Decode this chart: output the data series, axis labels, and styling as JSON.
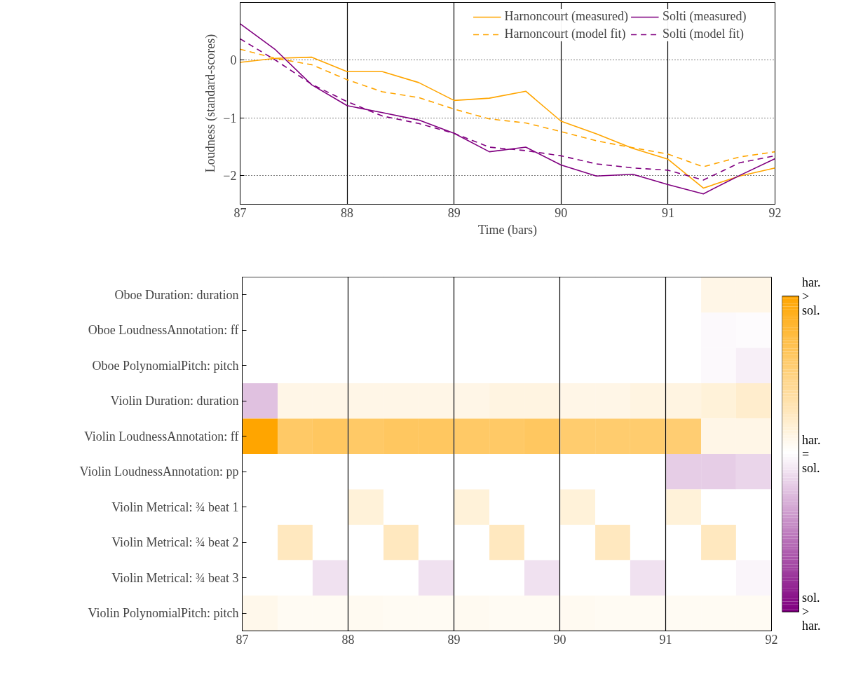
{
  "chart_data": [
    {
      "type": "line",
      "xlabel": "Time (bars)",
      "ylabel": "Loudness (standard-scores)",
      "x": [
        87,
        87.33,
        87.67,
        88,
        88.33,
        88.67,
        89,
        89.33,
        89.67,
        90,
        90.33,
        90.67,
        91,
        91.33,
        91.67,
        92
      ],
      "series": [
        {
          "name": "Harnoncourt (measured)",
          "color": "#ffa500",
          "line_style": "solid",
          "values": [
            -0.04,
            0.03,
            0.05,
            -0.2,
            -0.2,
            -0.39,
            -0.7,
            -0.66,
            -0.54,
            -1.06,
            -1.28,
            -1.53,
            -1.72,
            -2.22,
            -2.01,
            -1.87
          ]
        },
        {
          "name": "Harnoncourt (model fit)",
          "color": "#ffa500",
          "line_style": "dashed",
          "values": [
            0.19,
            0.03,
            -0.08,
            -0.34,
            -0.55,
            -0.65,
            -0.85,
            -1.02,
            -1.09,
            -1.24,
            -1.4,
            -1.52,
            -1.63,
            -1.85,
            -1.68,
            -1.59
          ]
        },
        {
          "name": "Solti (measured)",
          "color": "#800080",
          "line_style": "solid",
          "values": [
            0.63,
            0.18,
            -0.43,
            -0.79,
            -0.91,
            -1.04,
            -1.27,
            -1.59,
            -1.51,
            -1.82,
            -2.01,
            -1.98,
            -2.16,
            -2.32,
            -2.0,
            -1.71
          ]
        },
        {
          "name": "Solti (model fit)",
          "color": "#800080",
          "line_style": "dashed",
          "values": [
            0.37,
            0.0,
            -0.42,
            -0.72,
            -0.97,
            -1.1,
            -1.27,
            -1.51,
            -1.57,
            -1.66,
            -1.8,
            -1.87,
            -1.91,
            -2.08,
            -1.78,
            -1.66
          ]
        }
      ],
      "xlim": [
        87,
        92
      ],
      "xticks": [
        87,
        88,
        89,
        90,
        91,
        92
      ],
      "ylim": [
        -2.5,
        1.0
      ],
      "yticks": [
        -2,
        -1,
        0
      ],
      "grid": true,
      "legend": "top right",
      "marker": "none"
    },
    {
      "type": "heatmap",
      "x": [
        87.17,
        87.5,
        87.83,
        88.17,
        88.5,
        88.83,
        89.17,
        89.5,
        89.83,
        90.17,
        90.5,
        90.83,
        91.17,
        91.5,
        91.83
      ],
      "xlim": [
        87,
        92
      ],
      "xticks": [
        87,
        88,
        89,
        90,
        91,
        92
      ],
      "grid": "x",
      "y_categories": [
        "Oboe Duration: duration",
        "Oboe LoudnessAnnotation: ff",
        "Oboe PolynomialPitch: pitch",
        "Violin Duration: duration",
        "Violin LoudnessAnnotation: ff",
        "Violin LoudnessAnnotation: pp",
        "Violin Metrical: ¾ beat 1",
        "Violin Metrical: ¾ beat 2",
        "Violin Metrical: ¾ beat 3",
        "Violin PolynomialPitch: pitch"
      ],
      "cells": [
        [
          0,
          0,
          0,
          0,
          0,
          0,
          0,
          0,
          0,
          0,
          0,
          0,
          0,
          0.1,
          0.1
        ],
        [
          0,
          0,
          0,
          0,
          0,
          0,
          0,
          0,
          0,
          0,
          0,
          0,
          0,
          -0.03,
          -0.02
        ],
        [
          0,
          0,
          0,
          0,
          0,
          0,
          0,
          0,
          0,
          0,
          0,
          0,
          0,
          -0.03,
          -0.07
        ],
        [
          -0.25,
          0.1,
          0.1,
          0.1,
          0.1,
          0.1,
          0.1,
          0.12,
          0.12,
          0.1,
          0.1,
          0.12,
          0.12,
          0.15,
          0.2
        ],
        [
          1.0,
          0.6,
          0.62,
          0.6,
          0.62,
          0.62,
          0.6,
          0.6,
          0.62,
          0.57,
          0.57,
          0.57,
          0.55,
          0.1,
          0.1
        ],
        [
          0,
          0,
          0,
          0,
          0,
          0,
          0,
          0,
          0,
          0,
          0,
          0,
          -0.2,
          -0.2,
          -0.17
        ],
        [
          0,
          0,
          0,
          0.15,
          0,
          0,
          0.15,
          0,
          0,
          0.15,
          0,
          0,
          0.15,
          0,
          0
        ],
        [
          0,
          0.25,
          0,
          0,
          0.25,
          0,
          0,
          0.25,
          0,
          0,
          0.25,
          0,
          0,
          0.25,
          0
        ],
        [
          0,
          0,
          -0.12,
          0,
          0,
          -0.12,
          0,
          0,
          -0.12,
          0,
          0,
          -0.12,
          0,
          0,
          -0.04
        ],
        [
          0.08,
          0.05,
          0.05,
          0.06,
          0.05,
          0.05,
          0.06,
          0.05,
          0.05,
          0.06,
          0.05,
          0.05,
          0.05,
          0.05,
          0.05
        ]
      ],
      "clim": [
        -1,
        1
      ],
      "cticks": [
        {
          "value": 1,
          "label": "har. > sol."
        },
        {
          "value": 0,
          "label": "har. = sol."
        },
        {
          "value": -1,
          "label": "sol. > har."
        }
      ]
    }
  ]
}
